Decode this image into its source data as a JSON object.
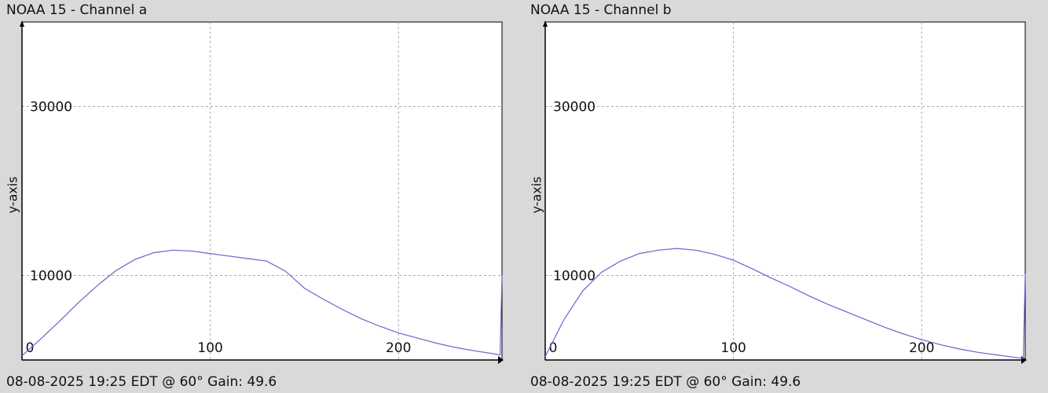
{
  "charts": [
    {
      "title": "NOAA 15 - Channel a",
      "footer": "08-08-2025 19:25 EDT @ 60° Gain: 49.6",
      "ylabel": "y-axis"
    },
    {
      "title": "NOAA 15 - Channel b",
      "footer": "08-08-2025 19:25 EDT @ 60° Gain: 49.6",
      "ylabel": "y-axis"
    }
  ],
  "colors": {
    "background": "#d9d9d9",
    "plot": "#ffffff",
    "line": "#6666cc",
    "grid": "#aaaaaa",
    "axis": "#000000"
  },
  "chart_data": [
    {
      "type": "line",
      "title": "NOAA 15 - Channel a",
      "ylabel": "y-axis",
      "xlim": [
        0,
        255
      ],
      "ylim": [
        0,
        40000
      ],
      "xticks": [
        0,
        100,
        200
      ],
      "yticks": [
        10000,
        30000
      ],
      "grid": true,
      "x": [
        0,
        10,
        20,
        30,
        40,
        50,
        60,
        70,
        80,
        90,
        100,
        110,
        120,
        130,
        140,
        150,
        160,
        170,
        180,
        190,
        200,
        210,
        220,
        230,
        240,
        250,
        254,
        255
      ],
      "y": [
        500,
        2500,
        4600,
        6800,
        8800,
        10600,
        11900,
        12700,
        13000,
        12900,
        12600,
        12300,
        12000,
        11700,
        10500,
        8500,
        7200,
        6000,
        4900,
        4000,
        3200,
        2600,
        2000,
        1500,
        1100,
        750,
        600,
        10000
      ]
    },
    {
      "type": "line",
      "title": "NOAA 15 - Channel b",
      "ylabel": "y-axis",
      "xlim": [
        0,
        255
      ],
      "ylim": [
        0,
        40000
      ],
      "xticks": [
        0,
        100,
        200
      ],
      "yticks": [
        10000,
        30000
      ],
      "grid": true,
      "x": [
        0,
        10,
        20,
        30,
        40,
        50,
        60,
        70,
        80,
        90,
        100,
        110,
        120,
        130,
        140,
        150,
        160,
        170,
        180,
        190,
        200,
        210,
        220,
        230,
        240,
        250,
        254,
        255
      ],
      "y": [
        400,
        4800,
        8200,
        10400,
        11700,
        12600,
        13000,
        13200,
        13000,
        12500,
        11800,
        10800,
        9700,
        8700,
        7600,
        6600,
        5700,
        4800,
        3900,
        3100,
        2400,
        1800,
        1300,
        900,
        600,
        300,
        200,
        10200
      ]
    }
  ]
}
